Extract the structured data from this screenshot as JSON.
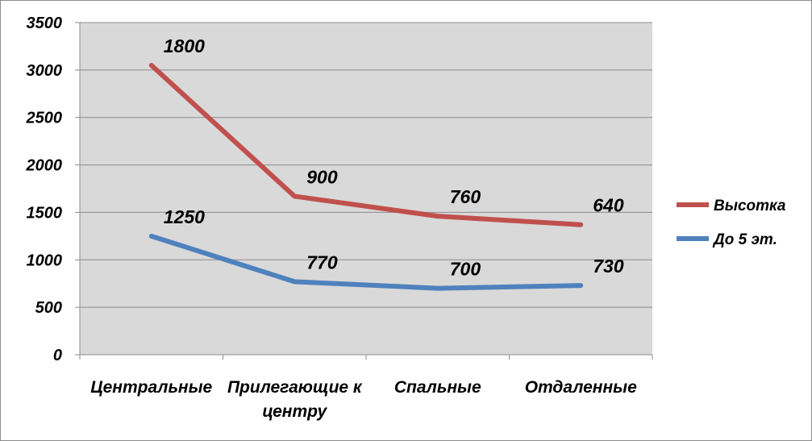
{
  "chart_data": {
    "type": "line",
    "title": "",
    "xlabel": "",
    "ylabel": "",
    "ylim": [
      0,
      3500
    ],
    "yticks": [
      0,
      500,
      1000,
      1500,
      2000,
      2500,
      3000,
      3500
    ],
    "grid": true,
    "legend_position": "right",
    "categories": [
      [
        "Центральные"
      ],
      [
        "Прилегающие к",
        "центру"
      ],
      [
        "Спальные"
      ],
      [
        "Отдаленные"
      ]
    ],
    "series": [
      {
        "name": "Высотка",
        "color": "#C0504D",
        "values": [
          3050,
          1670,
          1460,
          1370
        ],
        "labels": [
          "1800",
          "900",
          "760",
          "640"
        ]
      },
      {
        "name": "До 5 эт.",
        "color": "#4F81BD",
        "values": [
          1250,
          770,
          700,
          730
        ],
        "labels": [
          "1250",
          "770",
          "700",
          "730"
        ]
      }
    ],
    "colors": {
      "plot_background": "#D9D9D9",
      "gridline": "#8C8C8C",
      "axis": "#8C8C8C"
    }
  }
}
